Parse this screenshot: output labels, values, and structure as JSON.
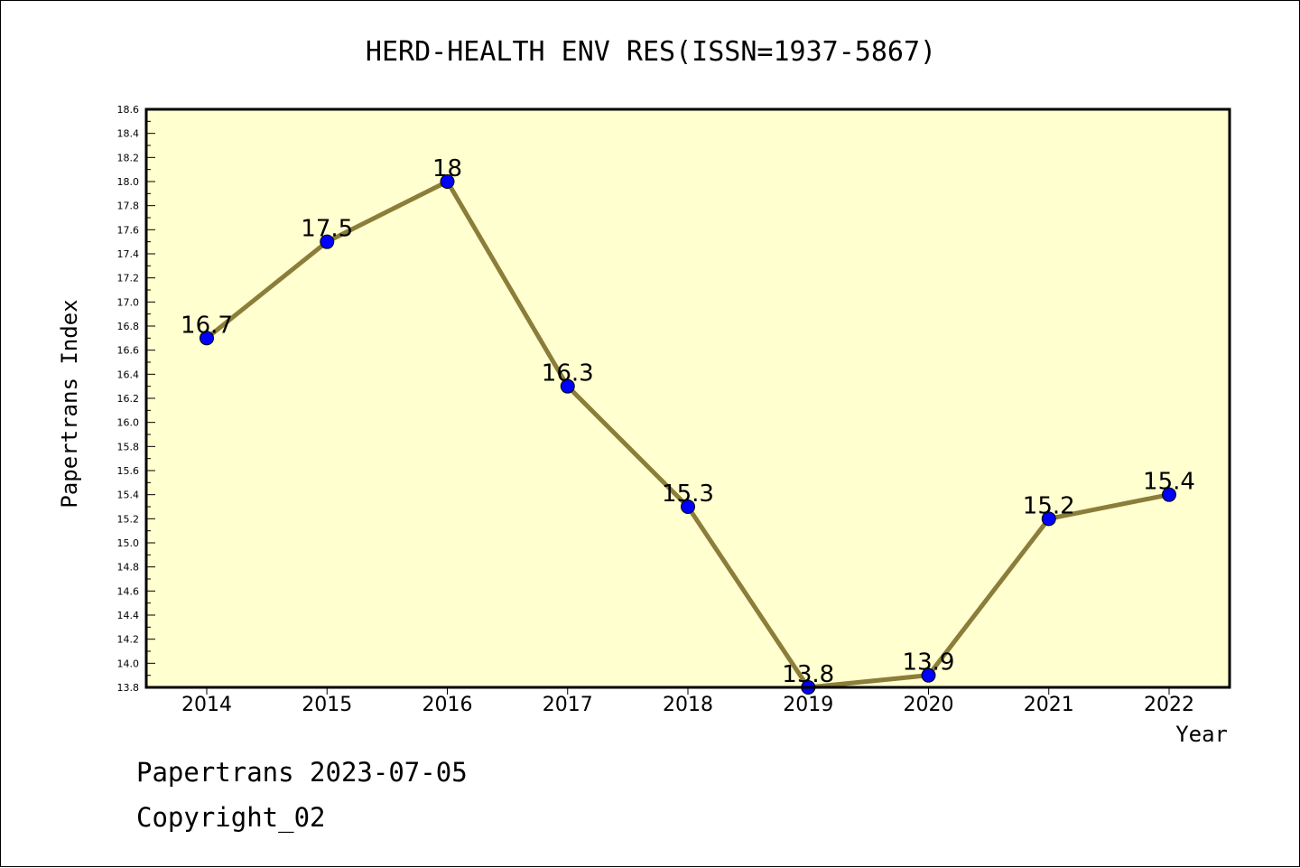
{
  "chart_data": {
    "type": "line",
    "title": "HERD-HEALTH ENV RES(ISSN=1937-5867)",
    "xlabel": "Year",
    "ylabel": "Papertrans Index",
    "x": [
      "2014",
      "2015",
      "2016",
      "2017",
      "2018",
      "2019",
      "2020",
      "2021",
      "2022"
    ],
    "values": [
      16.7,
      17.5,
      18.0,
      16.3,
      15.3,
      13.8,
      13.9,
      15.2,
      15.4
    ],
    "data_labels": [
      "16.7",
      "17.5",
      "18",
      "16.3",
      "15.3",
      "13.8",
      "13.9",
      "15.2",
      "15.4"
    ],
    "ylim": [
      13.8,
      18.6
    ],
    "ytick_step": 0.2,
    "grid": false,
    "legend": "none",
    "colors": {
      "plot_background": "#ffffd0",
      "line": "#8b7d3a",
      "marker": "#0000ff"
    }
  },
  "footer": {
    "line1": "Papertrans 2023-07-05",
    "line2": "Copyright_02"
  }
}
